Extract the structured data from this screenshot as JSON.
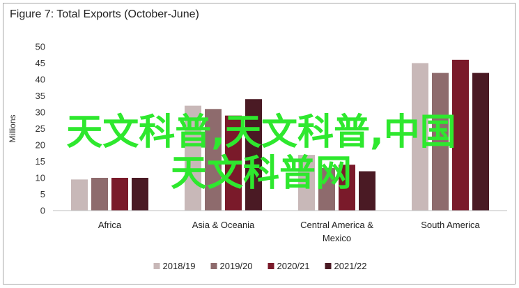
{
  "chart_data": {
    "type": "bar",
    "title": "Figure 7: Total Exports (October-June)",
    "ylabel": "Millions",
    "ylim": [
      0,
      50
    ],
    "yticks": [
      0,
      5,
      10,
      15,
      20,
      25,
      30,
      35,
      40,
      45,
      50
    ],
    "grid": false,
    "legend_position": "bottom",
    "categories": [
      [
        "Africa"
      ],
      [
        "Asia & Oceania"
      ],
      [
        "Central America &",
        "Mexico"
      ],
      [
        "South America"
      ]
    ],
    "series": [
      {
        "name": "2018/19",
        "color": "#c8b8b8",
        "values": [
          9.5,
          32,
          17,
          45
        ]
      },
      {
        "name": "2019/20",
        "color": "#8e6b6d",
        "values": [
          10,
          31,
          13,
          42
        ]
      },
      {
        "name": "2020/21",
        "color": "#7a1a2a",
        "values": [
          10,
          29,
          14,
          46
        ]
      },
      {
        "name": "2021/22",
        "color": "#4a1a24",
        "values": [
          10,
          34,
          12,
          42
        ]
      }
    ]
  },
  "watermark": {
    "line1": "天文科普,天文科普,中国",
    "line2": "天文科普网",
    "color": "#2ee82e"
  }
}
